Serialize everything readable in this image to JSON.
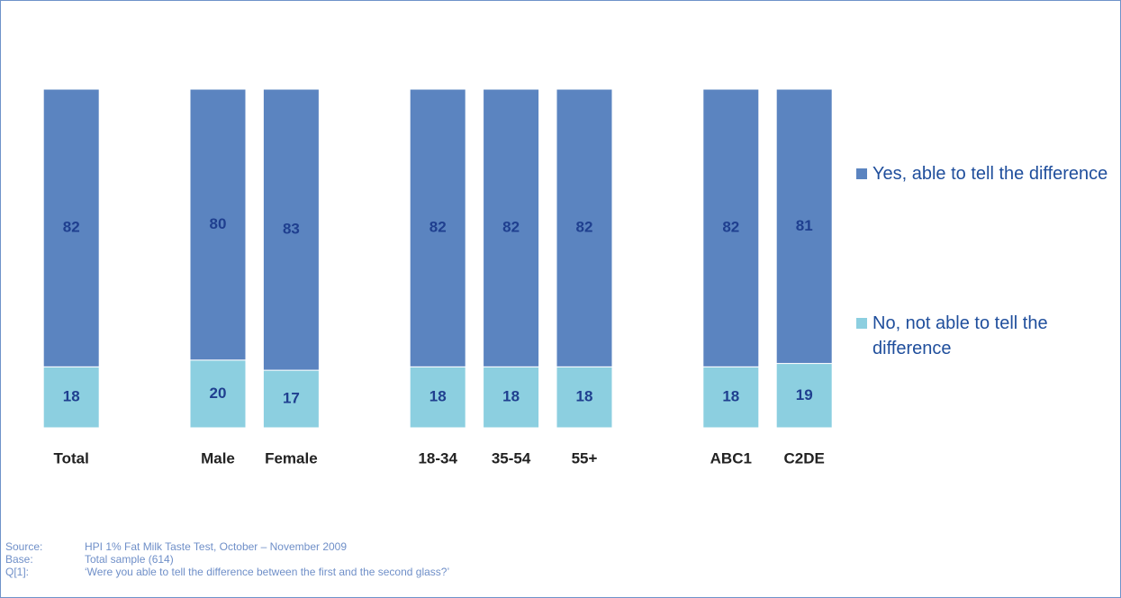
{
  "chart_data": {
    "type": "stacked_bar",
    "categories": [
      "Total",
      null,
      "Male",
      "Female",
      null,
      "18-34",
      "35-54",
      "55+",
      null,
      "ABC1",
      "C2DE"
    ],
    "series": [
      {
        "name": "Yes, able to tell the difference",
        "color": "#5b84c0",
        "values": [
          82,
          null,
          80,
          83,
          null,
          82,
          82,
          82,
          null,
          82,
          81
        ]
      },
      {
        "name": "No, not able to tell the difference",
        "color": "#8ccfe0",
        "values": [
          18,
          null,
          20,
          17,
          null,
          18,
          18,
          18,
          null,
          18,
          19
        ]
      }
    ],
    "ylim": [
      0,
      100
    ],
    "legend": "right",
    "notes": [
      {
        "key": "Source:",
        "text": "HPI 1% Fat Milk Taste Test, October – November 2009"
      },
      {
        "key": "Base:",
        "text": "Total sample (614)"
      },
      {
        "key": "Q[1]:",
        "text": "‘Were you able to tell the difference between the first and the second glass?’"
      }
    ]
  }
}
